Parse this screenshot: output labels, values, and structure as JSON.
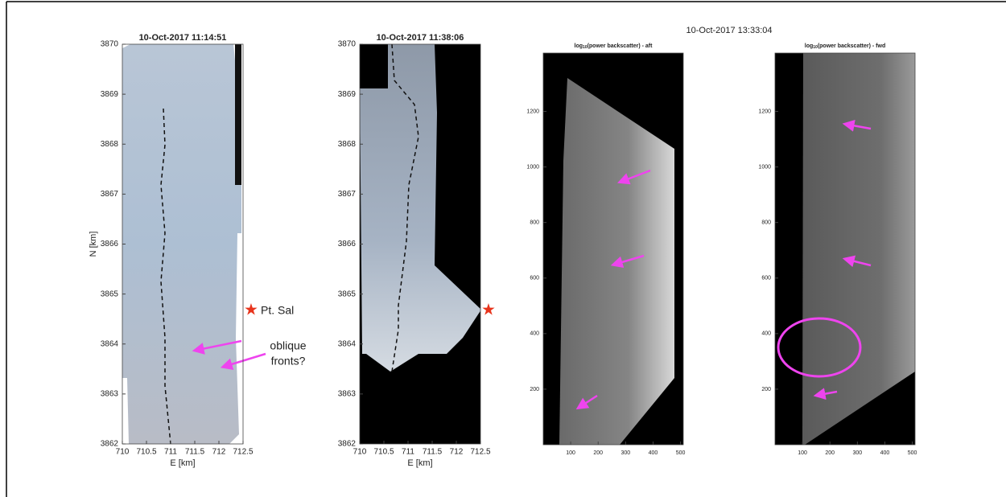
{
  "suptitle": "10-Oct-2017 13:33:04",
  "annotations": {
    "pt_sal": "Pt. Sal",
    "oblique": "oblique",
    "fronts": "fronts?"
  },
  "chart_data": [
    {
      "type": "image",
      "title": "10-Oct-2017 11:14:51",
      "xlabel": "E [km]",
      "ylabel": "N [km]",
      "xlim": [
        710,
        712.5
      ],
      "ylim": [
        3862,
        3870
      ],
      "xticks": [
        710,
        710.5,
        711,
        711.5,
        712,
        712.5
      ],
      "yticks": [
        3862,
        3863,
        3864,
        3865,
        3866,
        3867,
        3868,
        3869,
        3870
      ]
    },
    {
      "type": "image",
      "title": "10-Oct-2017 11:38:06",
      "xlabel": "E [km]",
      "xlim": [
        710,
        712.5
      ],
      "ylim": [
        3862,
        3870
      ],
      "xticks": [
        710,
        710.5,
        711,
        711.5,
        712,
        712.5
      ],
      "yticks": [
        3862,
        3863,
        3864,
        3865,
        3866,
        3867,
        3868,
        3869,
        3870
      ]
    },
    {
      "type": "image",
      "title": {
        "base": "log",
        "sub": "10",
        "rest": "(power backscatter) - aft"
      },
      "xlim": [
        0,
        510
      ],
      "ylim": [
        0,
        1410
      ],
      "xticks": [
        100,
        200,
        300,
        400,
        500
      ],
      "yticks": [
        200,
        400,
        600,
        800,
        1000,
        1200
      ]
    },
    {
      "type": "image",
      "title": {
        "base": "log",
        "sub": "10",
        "rest": "(power backscatter) - fwd"
      },
      "xlim": [
        0,
        510
      ],
      "ylim": [
        0,
        1410
      ],
      "xticks": [
        100,
        200,
        300,
        400,
        500
      ],
      "yticks": [
        200,
        400,
        600,
        800,
        1000,
        1200
      ]
    }
  ]
}
